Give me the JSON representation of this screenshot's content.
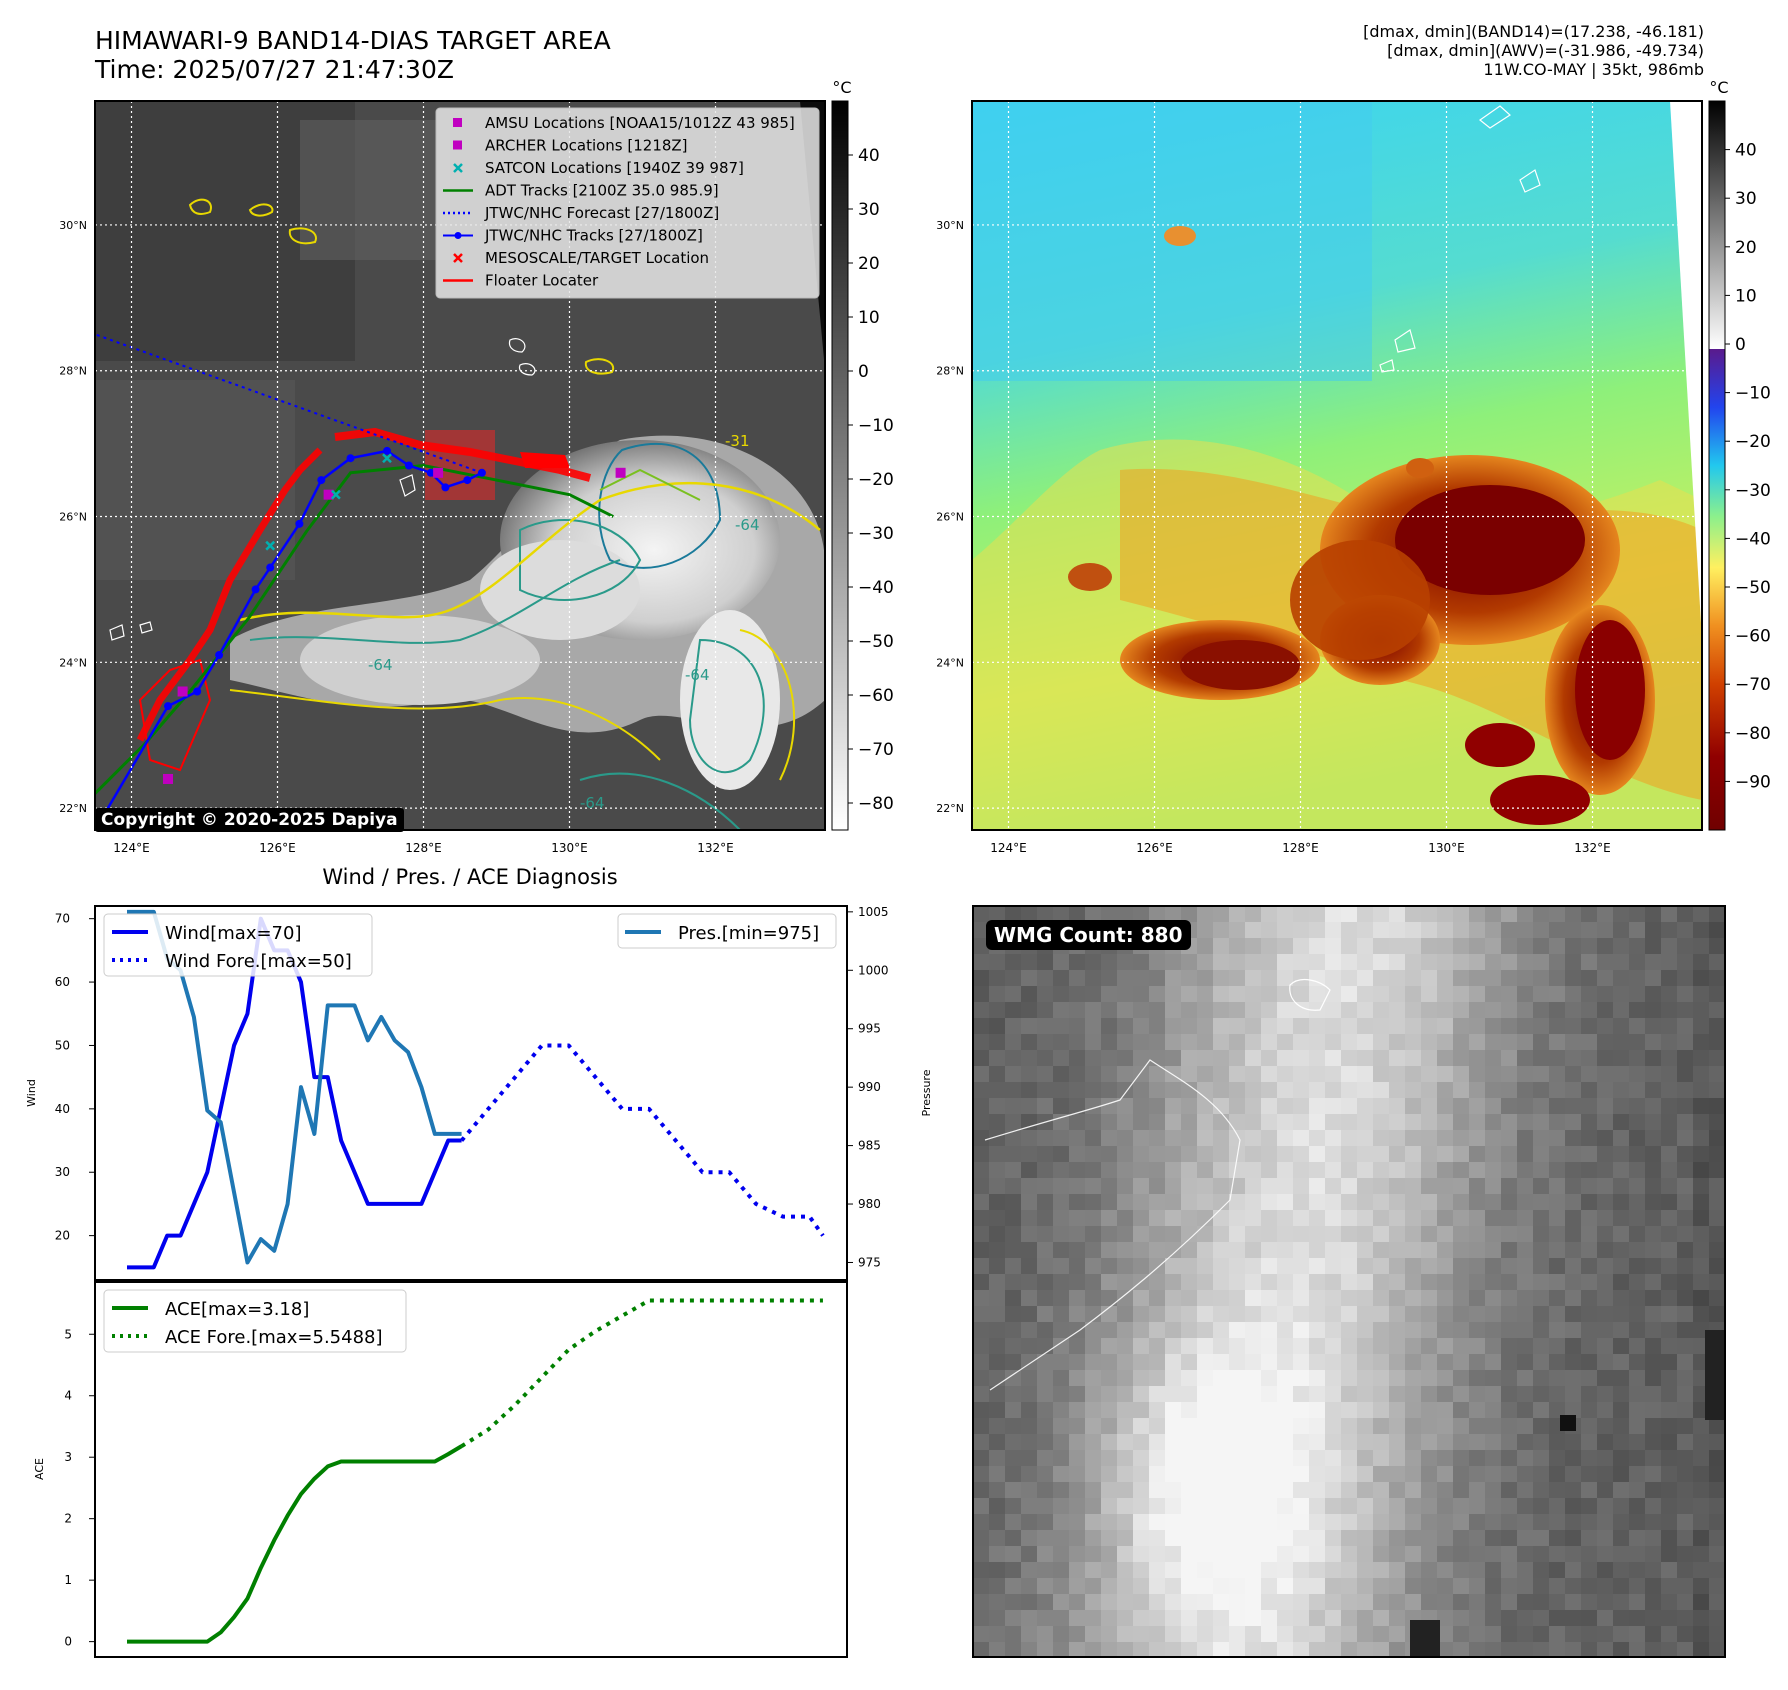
{
  "header": {
    "title_line1": "HIMAWARI-9 BAND14-DIAS TARGET AREA",
    "title_line2": "Time: 2025/07/27 21:47:30Z",
    "stats_line1": "[dmax, dmin](BAND14)=(17.238, -46.181)",
    "stats_line2": "[dmax, dmin](AWV)=(-31.986, -49.734)",
    "stats_line3": "11W.CO-MAY | 35kt, 986mb"
  },
  "map_axes": {
    "lat_ticks": [
      "30°N",
      "28°N",
      "26°N",
      "24°N",
      "22°N"
    ],
    "lon_ticks": [
      "124°E",
      "126°E",
      "128°E",
      "130°E",
      "132°E"
    ],
    "lat_values": [
      30,
      28,
      26,
      24,
      22
    ],
    "lon_values": [
      124,
      126,
      128,
      130,
      132
    ],
    "lat_range": [
      21.7,
      31.7
    ],
    "lon_range": [
      123.5,
      133.5
    ]
  },
  "ir_panel": {
    "copyright": "Copyright © 2020-2025 Dapiya",
    "contour_labels": [
      "-31",
      "-64",
      "-64",
      "-64",
      "-64"
    ],
    "legend": [
      {
        "label": "AMSU Locations [NOAA15/1012Z 43 985]",
        "marker": "square",
        "color": "#c000c0"
      },
      {
        "label": "ARCHER Locations [1218Z]",
        "marker": "square",
        "color": "#c000c0"
      },
      {
        "label": "SATCON Locations [1940Z 39 987]",
        "marker": "x",
        "color": "#00b0b0"
      },
      {
        "label": "ADT Tracks [2100Z 35.0 985.9]",
        "marker": "line",
        "color": "#008000"
      },
      {
        "label": "JTWC/NHC Forecast [27/1800Z]",
        "marker": "dotted",
        "color": "#0000ff"
      },
      {
        "label": "JTWC/NHC Tracks [27/1800Z]",
        "marker": "line-dot",
        "color": "#0000ff"
      },
      {
        "label": "MESOSCALE/TARGET Location",
        "marker": "x",
        "color": "#ff0000"
      },
      {
        "label": "Floater Locater",
        "marker": "line",
        "color": "#ff0000"
      }
    ],
    "jtwc_track": [
      [
        123.5,
        21.7
      ],
      [
        124.5,
        23.4
      ],
      [
        124.9,
        23.6
      ],
      [
        125.2,
        24.1
      ],
      [
        125.7,
        25.0
      ],
      [
        125.9,
        25.3
      ],
      [
        126.3,
        25.9
      ],
      [
        126.6,
        26.5
      ],
      [
        127.0,
        26.8
      ],
      [
        127.5,
        26.9
      ],
      [
        127.8,
        26.7
      ],
      [
        128.1,
        26.6
      ],
      [
        128.3,
        26.4
      ],
      [
        128.6,
        26.5
      ],
      [
        128.8,
        26.6
      ]
    ],
    "jtwc_forecast": [
      [
        128.8,
        26.6
      ],
      [
        123.5,
        28.5
      ]
    ],
    "adt_track": [
      [
        123.5,
        22.2
      ],
      [
        124.2,
        22.9
      ],
      [
        124.8,
        23.6
      ],
      [
        125.6,
        24.6
      ],
      [
        126.4,
        25.8
      ],
      [
        127.0,
        26.6
      ],
      [
        128.0,
        26.7
      ],
      [
        129.0,
        26.5
      ],
      [
        130.0,
        26.3
      ],
      [
        130.6,
        26.0
      ]
    ],
    "archer_points": [
      [
        124.7,
        23.6
      ],
      [
        126.7,
        26.3
      ],
      [
        128.2,
        26.6
      ],
      [
        130.7,
        26.6
      ],
      [
        124.5,
        22.4
      ]
    ],
    "satcon_points": [
      [
        125.9,
        25.6
      ],
      [
        126.8,
        26.3
      ],
      [
        127.5,
        26.8
      ]
    ],
    "ir_colorbar": {
      "unit": "°C",
      "ticks": [
        40,
        30,
        20,
        10,
        0,
        -10,
        -20,
        -30,
        -40,
        -50,
        -60,
        -70,
        -80
      ],
      "range": [
        -85,
        50
      ]
    }
  },
  "wv_panel": {
    "colorbar": {
      "unit": "°C",
      "ticks": [
        40,
        30,
        20,
        10,
        0,
        -10,
        -20,
        -30,
        -40,
        -50,
        -60,
        -70,
        -80,
        -90
      ],
      "range": [
        -100,
        50
      ]
    }
  },
  "chart_data": [
    {
      "type": "line",
      "title": "Wind / Pres. / ACE Diagnosis",
      "ylabel": "Wind",
      "ylabel2": "Pressure",
      "x_index": [
        0,
        1,
        2,
        3,
        4,
        5,
        6,
        7,
        8,
        9,
        10,
        11,
        12,
        13,
        14,
        15,
        16,
        17,
        18,
        19,
        20,
        21,
        22,
        23,
        24,
        25,
        26,
        27,
        28,
        29,
        30,
        31,
        32,
        33,
        34,
        35,
        36,
        37,
        38,
        39,
        40,
        41,
        42,
        43,
        44,
        45,
        46,
        47,
        48,
        49,
        50,
        51,
        52
      ],
      "ylim": [
        13,
        72
      ],
      "ylim2": [
        973.5,
        1005.5
      ],
      "yticks": [
        20,
        30,
        40,
        50,
        60,
        70
      ],
      "yticks2": [
        975,
        980,
        985,
        990,
        995,
        1000,
        1005
      ],
      "series": [
        {
          "name": "Wind[max=70]",
          "style": "solid",
          "color": "#0000ee",
          "x": [
            0,
            1,
            2,
            3,
            4,
            5,
            6,
            7,
            8,
            9,
            10,
            11,
            12,
            13,
            14,
            15,
            16,
            17,
            18,
            19,
            20,
            21,
            22,
            23,
            24,
            25
          ],
          "values": [
            15,
            15,
            15,
            20,
            20,
            25,
            30,
            40,
            50,
            55,
            70,
            65,
            65,
            60,
            45,
            45,
            35,
            30,
            25,
            25,
            25,
            25,
            25,
            30,
            35,
            35
          ]
        },
        {
          "name": "Wind Fore.[max=50]",
          "style": "dotted",
          "color": "#0000ee",
          "x": [
            25,
            27,
            29,
            31,
            33,
            35,
            37,
            39,
            41,
            43,
            45,
            47,
            49,
            51,
            52
          ],
          "values": [
            35,
            40,
            45,
            50,
            50,
            45,
            40,
            40,
            35,
            30,
            30,
            25,
            23,
            23,
            20
          ]
        },
        {
          "name": "Pres.[min=975]",
          "style": "solid",
          "color": "#1f77b4",
          "axis": "right",
          "x": [
            0,
            1,
            2,
            3,
            4,
            5,
            6,
            7,
            8,
            9,
            10,
            11,
            12,
            13,
            14,
            15,
            16,
            17,
            18,
            19,
            20,
            21,
            22,
            23,
            24,
            25
          ],
          "values": [
            1005,
            1005,
            1005,
            1001,
            1000,
            996,
            988,
            987,
            981,
            975,
            977,
            976,
            980,
            990,
            986,
            997,
            997,
            997,
            994,
            996,
            994,
            993,
            990,
            986,
            986,
            986
          ]
        }
      ]
    },
    {
      "type": "line",
      "ylabel": "ACE",
      "ylim": [
        -0.25,
        5.85
      ],
      "yticks": [
        0,
        1,
        2,
        3,
        4,
        5
      ],
      "series": [
        {
          "name": "ACE[max=3.18]",
          "style": "solid",
          "color": "#008000",
          "x": [
            0,
            3,
            6,
            7,
            8,
            9,
            10,
            11,
            12,
            13,
            14,
            15,
            16,
            17,
            18,
            19,
            20,
            21,
            22,
            23,
            24,
            25
          ],
          "values": [
            0,
            0,
            0,
            0.15,
            0.4,
            0.7,
            1.2,
            1.65,
            2.05,
            2.4,
            2.65,
            2.85,
            2.93,
            2.93,
            2.93,
            2.93,
            2.93,
            2.93,
            2.93,
            2.93,
            3.05,
            3.18
          ]
        },
        {
          "name": "ACE Fore.[max=5.5488]",
          "style": "dotted",
          "color": "#008000",
          "x": [
            25,
            27,
            29,
            31,
            33,
            35,
            37,
            39,
            41,
            43,
            45,
            47,
            49,
            51,
            52
          ],
          "values": [
            3.18,
            3.45,
            3.85,
            4.3,
            4.75,
            5.05,
            5.3,
            5.5488,
            5.5488,
            5.5488,
            5.5488,
            5.5488,
            5.5488,
            5.5488,
            5.5488
          ]
        }
      ]
    }
  ],
  "wmg_panel": {
    "count_label": "WMG Count: 880"
  }
}
